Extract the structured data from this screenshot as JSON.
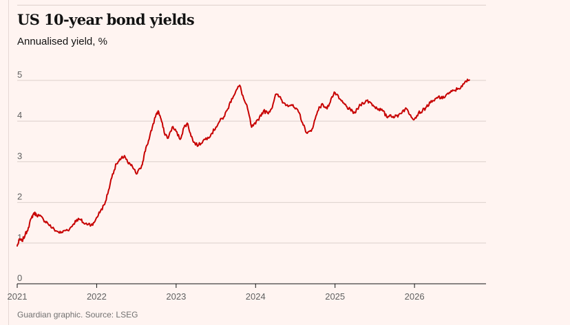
{
  "chart_data": {
    "type": "line",
    "title": "US 10-year bond yields",
    "subtitle": "Annualised yield, %",
    "source": "Guardian graphic. Source: LSEG",
    "xlabel": "",
    "ylabel": "",
    "xlim": [
      2021.0,
      2026.9
    ],
    "ylim": [
      0,
      5
    ],
    "x_ticks": [
      2021,
      2022,
      2023,
      2024,
      2025,
      2026
    ],
    "x_tick_labels": [
      "2021",
      "2022",
      "2023",
      "2024",
      "2025",
      "2026"
    ],
    "y_ticks": [
      0,
      1,
      2,
      3,
      4,
      5
    ],
    "y_tick_labels": [
      "0",
      "1",
      "2",
      "3",
      "4",
      "5"
    ],
    "grid": "horizontal",
    "legend": "none",
    "colors": {
      "series": "#c70000",
      "grid": "#dccfcb",
      "baseline": "#121212",
      "background": "#fff4f1"
    },
    "series": [
      {
        "x": [
          2021.0,
          2021.03,
          2021.06,
          2021.1,
          2021.14,
          2021.18,
          2021.21,
          2021.24,
          2021.28,
          2021.33,
          2021.38,
          2021.44,
          2021.5,
          2021.55,
          2021.6,
          2021.66,
          2021.7,
          2021.75,
          2021.8,
          2021.85,
          2021.9,
          2021.95,
          2022.0,
          2022.05,
          2022.1,
          2022.15,
          2022.2,
          2022.25,
          2022.3,
          2022.35,
          2022.4,
          2022.45,
          2022.5,
          2022.55,
          2022.58,
          2022.62,
          2022.66,
          2022.7,
          2022.75,
          2022.78,
          2022.81,
          2022.85,
          2022.9,
          2022.95,
          2023.0,
          2023.05,
          2023.1,
          2023.14,
          2023.18,
          2023.22,
          2023.28,
          2023.34,
          2023.4,
          2023.45,
          2023.5,
          2023.55,
          2023.6,
          2023.65,
          2023.7,
          2023.75,
          2023.8,
          2023.85,
          2023.9,
          2023.95,
          2024.0,
          2024.05,
          2024.1,
          2024.15,
          2024.2,
          2024.25,
          2024.3,
          2024.35,
          2024.4,
          2024.45,
          2024.5,
          2024.55,
          2024.6,
          2024.65,
          2024.7,
          2024.75,
          2024.8,
          2024.85,
          2024.9,
          2024.95,
          2025.0,
          2025.05,
          2025.1,
          2025.15,
          2025.2,
          2025.25,
          2025.3,
          2025.35,
          2025.4,
          2025.45,
          2025.5,
          2025.55,
          2025.6,
          2025.65,
          2025.7,
          2025.75,
          2025.8,
          2025.85,
          2025.9,
          2025.95,
          2026.0,
          2026.05,
          2026.1,
          2026.15,
          2026.2,
          2026.25,
          2026.3,
          2026.35,
          2026.4,
          2026.45,
          2026.5,
          2026.55,
          2026.6,
          2026.65,
          2026.69
        ],
        "y": [
          0.93,
          1.09,
          1.05,
          1.2,
          1.38,
          1.62,
          1.74,
          1.7,
          1.67,
          1.58,
          1.5,
          1.37,
          1.29,
          1.25,
          1.31,
          1.35,
          1.45,
          1.58,
          1.57,
          1.47,
          1.48,
          1.44,
          1.63,
          1.8,
          1.95,
          2.3,
          2.7,
          2.95,
          3.05,
          3.15,
          2.95,
          2.88,
          2.7,
          2.83,
          3.0,
          3.35,
          3.55,
          3.85,
          4.18,
          4.23,
          4.05,
          3.72,
          3.58,
          3.85,
          3.75,
          3.55,
          3.85,
          3.95,
          3.7,
          3.48,
          3.4,
          3.52,
          3.6,
          3.7,
          3.85,
          4.0,
          4.1,
          4.3,
          4.55,
          4.73,
          4.88,
          4.55,
          4.3,
          3.85,
          3.93,
          4.1,
          4.25,
          4.2,
          4.3,
          4.65,
          4.6,
          4.45,
          4.4,
          4.4,
          4.3,
          4.2,
          3.9,
          3.7,
          3.75,
          4.05,
          4.35,
          4.4,
          4.3,
          4.55,
          4.7,
          4.55,
          4.45,
          4.35,
          4.25,
          4.2,
          4.35,
          4.45,
          4.5,
          4.45,
          4.35,
          4.3,
          4.25,
          4.1,
          4.15,
          4.1,
          4.15,
          4.25,
          4.3,
          4.15,
          4.05,
          4.2,
          4.25,
          4.35,
          4.45,
          4.5,
          4.6,
          4.55,
          4.65,
          4.7,
          4.75,
          4.8,
          4.85,
          4.98,
          5.01
        ]
      }
    ]
  }
}
